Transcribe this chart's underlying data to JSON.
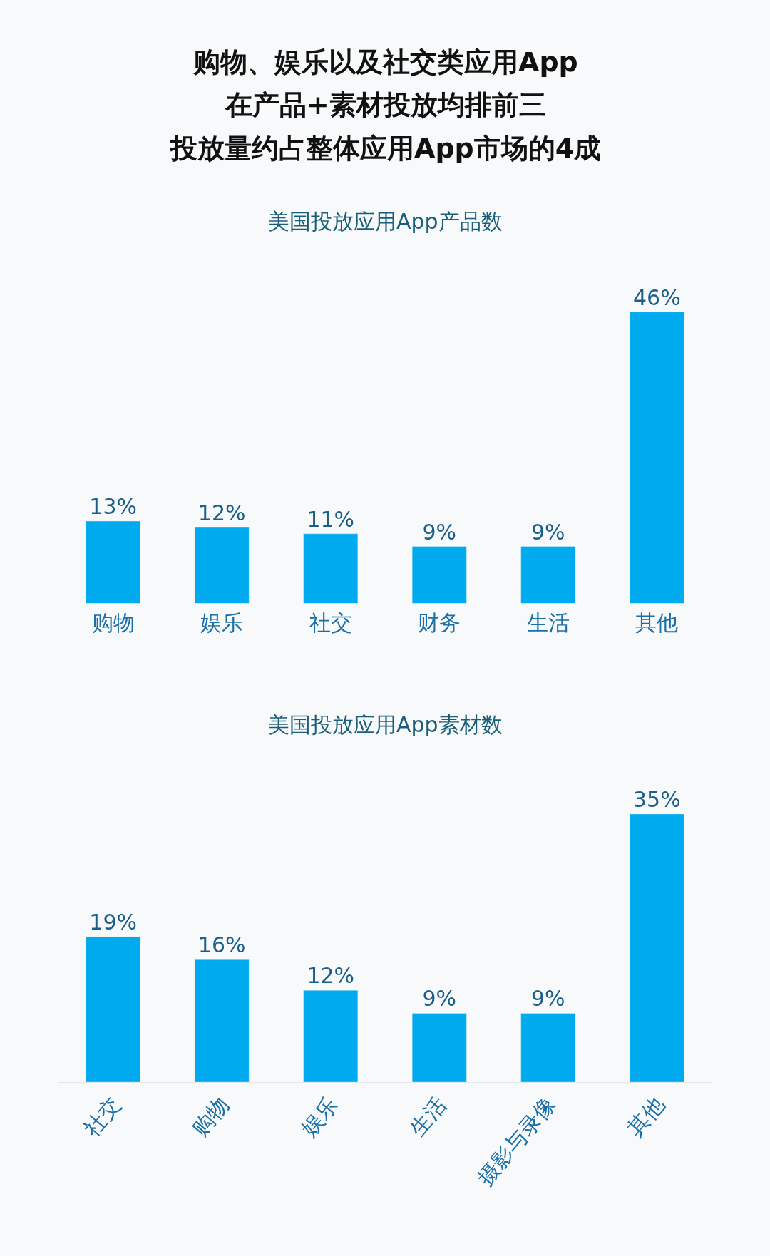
{
  "chart_data": [
    {
      "type": "bar",
      "title": "购物、娱乐以及社交类应用App",
      "annotations": [
        "在产品+素材投放均排前三",
        "投放量约占整体应用App市场的4成"
      ],
      "subtitle": "美国投放应用App产品数",
      "categories": [
        "购物",
        "娱乐",
        "社交",
        "财务",
        "生活",
        "其他"
      ],
      "values": [
        13,
        12,
        11,
        9,
        9,
        46
      ],
      "value_labels": [
        "13%",
        "12%",
        "11%",
        "9%",
        "9%",
        "46%"
      ],
      "color": "#00aaef",
      "grid": false
    },
    {
      "type": "bar",
      "title": "美国投放应用App素材数",
      "categories": [
        "社交",
        "购物",
        "娱乐",
        "生活",
        "摄影与录像",
        "其他"
      ],
      "values": [
        19,
        16,
        12,
        9,
        9,
        35
      ],
      "value_labels": [
        "19%",
        "16%",
        "12%",
        "9%",
        "9%",
        "35%"
      ],
      "color": "#00aaef",
      "grid": false
    }
  ]
}
